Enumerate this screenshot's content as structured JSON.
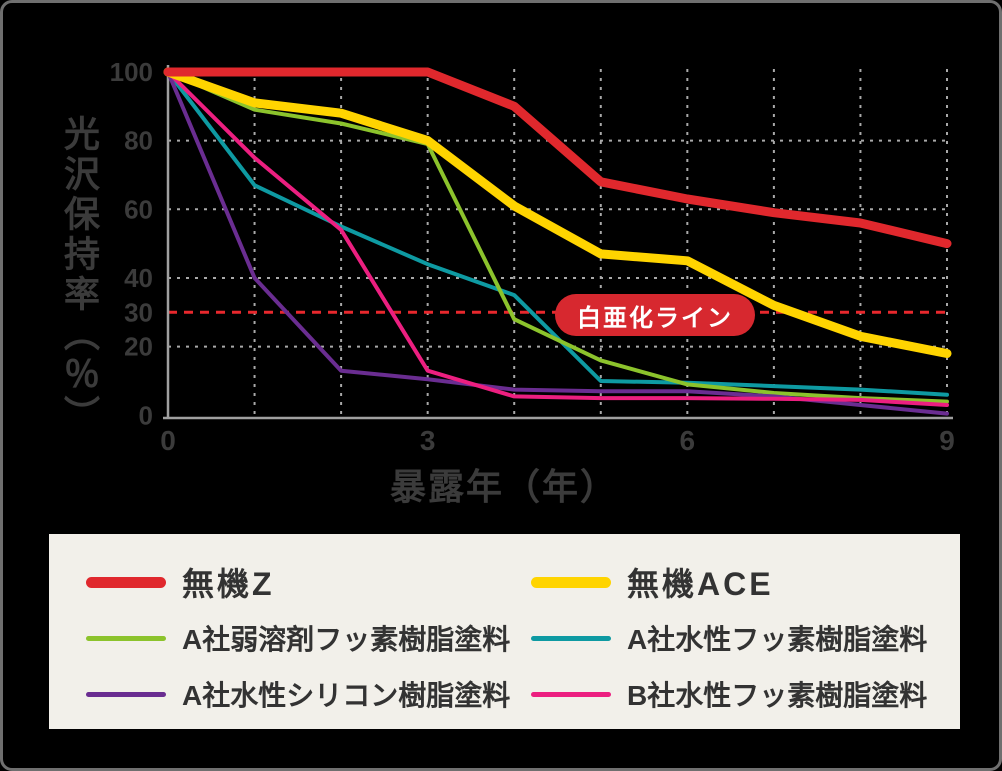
{
  "chart_data": {
    "type": "line",
    "xlabel": "暴露年（年）",
    "ylabel": "光沢保持率（％）",
    "x": [
      0,
      1,
      2,
      3,
      4,
      5,
      6,
      7,
      8,
      9
    ],
    "x_ticks": [
      0,
      3,
      6,
      9
    ],
    "y_ticks": [
      100,
      80,
      60,
      40,
      30,
      20,
      0
    ],
    "xlim": [
      0,
      9
    ],
    "ylim": [
      0,
      100
    ],
    "grid": "dashed",
    "legend_position": "bottom",
    "threshold": {
      "value": 30,
      "label": "白亜化ライン",
      "color": "#e8282d"
    },
    "series": [
      {
        "name": "無機Z",
        "color": "#e0282d",
        "width": 9,
        "values": [
          100,
          100,
          100,
          100,
          90,
          68,
          63,
          59,
          56,
          50
        ]
      },
      {
        "name": "無機ACE",
        "color": "#ffd400",
        "width": 9,
        "values": [
          100,
          91,
          88,
          80,
          61,
          47,
          45,
          32,
          23,
          18
        ]
      },
      {
        "name": "A社弱溶剤フッ素樹脂塗料",
        "color": "#8cc32c",
        "width": 4,
        "values": [
          100,
          89,
          85,
          79,
          28,
          16,
          9,
          6.5,
          5,
          4
        ]
      },
      {
        "name": "A社水性フッ素樹脂塗料",
        "color": "#0e9aa2",
        "width": 4,
        "values": [
          100,
          67,
          55,
          44,
          35,
          10,
          9.5,
          8.5,
          7.5,
          6
        ]
      },
      {
        "name": "A社水性シリコン樹脂塗料",
        "color": "#6a2d91",
        "width": 4,
        "values": [
          100,
          40,
          13,
          10.5,
          7.5,
          7,
          7,
          5.5,
          3,
          0.5
        ]
      },
      {
        "name": "B社水性フッ素樹脂塗料",
        "color": "#ec1f80",
        "width": 4,
        "values": [
          100,
          75,
          54,
          13,
          5.5,
          5,
          5,
          4.8,
          4.5,
          3
        ]
      }
    ]
  },
  "colors": {
    "background": "#000000",
    "frame_border": "#6f6f6f",
    "grid": "#a9a9a9",
    "axis": "#a0a0a0",
    "tick_text": "#3b3b3b",
    "axis_title_text": "#3b3b3b",
    "legend_bg": "#f2f0ea",
    "legend_text": "#333333",
    "badge_bg": "#d7282f",
    "badge_text": "#ffffff"
  }
}
